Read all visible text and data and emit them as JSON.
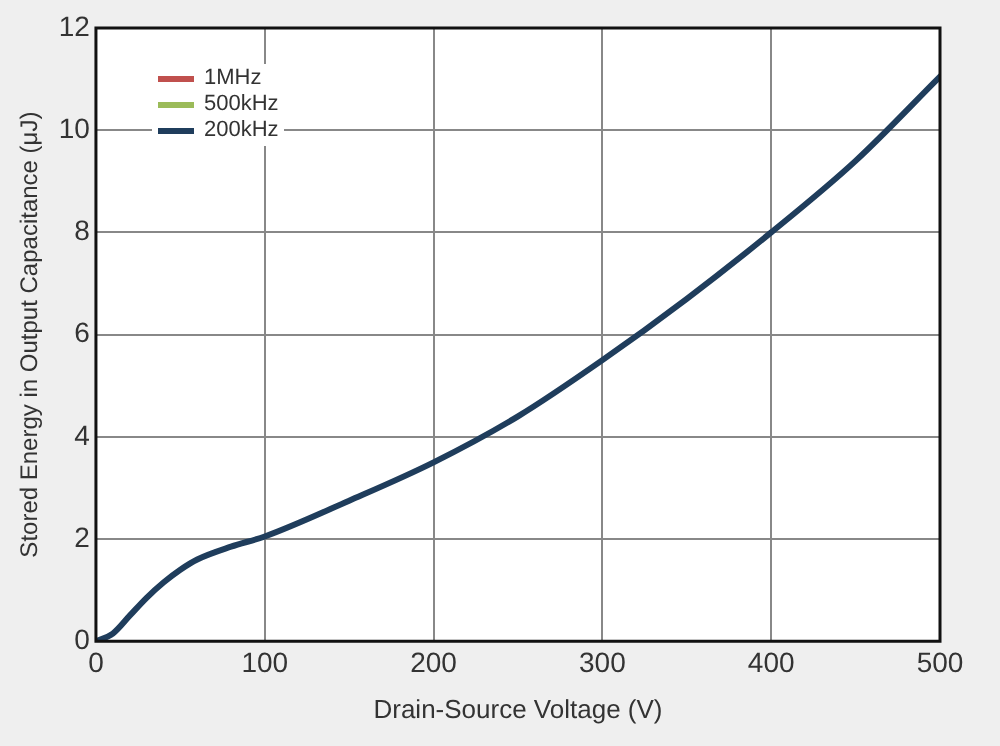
{
  "chart_data": {
    "type": "line",
    "xlabel": "Drain-Source Voltage (V)",
    "ylabel": "Stored Energy in Output Capacitance (μJ)",
    "x": [
      0,
      10,
      20,
      30,
      40,
      50,
      60,
      80,
      100,
      150,
      200,
      250,
      300,
      350,
      400,
      450,
      500
    ],
    "series": [
      {
        "name": "1MHz",
        "color": "#c0504d",
        "values": [
          null,
          null,
          null,
          null,
          null,
          null,
          null,
          null,
          null,
          null,
          null,
          null,
          null,
          null,
          null,
          null,
          null
        ]
      },
      {
        "name": "500kHz",
        "color": "#9bbb59",
        "values": [
          null,
          null,
          null,
          null,
          null,
          null,
          null,
          null,
          null,
          null,
          null,
          null,
          null,
          null,
          null,
          null,
          null
        ]
      },
      {
        "name": "200kHz",
        "color": "#1f3d5c",
        "values": [
          0,
          0.15,
          0.5,
          0.85,
          1.15,
          1.4,
          1.6,
          1.85,
          2.05,
          2.75,
          3.5,
          4.4,
          5.5,
          6.7,
          8.0,
          9.4,
          11.05
        ]
      }
    ],
    "xlim": [
      0,
      500
    ],
    "xticks": [
      0,
      100,
      200,
      300,
      400,
      500
    ],
    "ylim": [
      0,
      12
    ],
    "yticks": [
      0,
      2,
      4,
      6,
      8,
      10,
      12
    ],
    "grid": true,
    "legend": "top left",
    "marker": "none",
    "line_style": "solid"
  }
}
